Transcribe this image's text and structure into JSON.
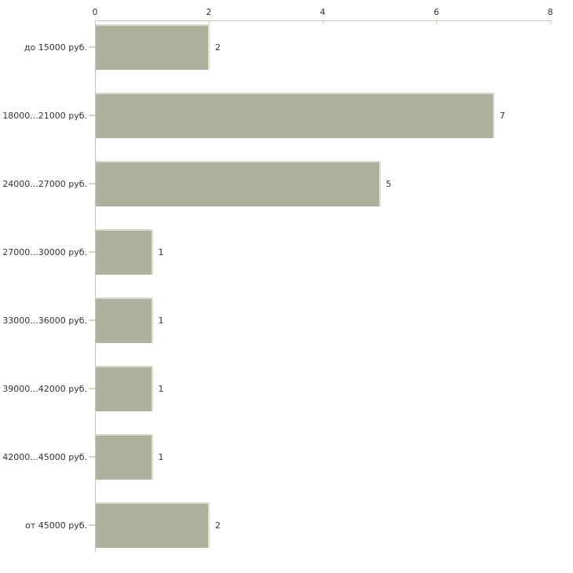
{
  "chart_data": {
    "type": "bar",
    "orientation": "horizontal",
    "title": "",
    "xlabel": "",
    "ylabel": "",
    "categories": [
      "до 15000 руб.",
      "18000...21000 руб.",
      "24000...27000 руб.",
      "27000...30000 руб.",
      "33000...36000 руб.",
      "39000...42000 руб.",
      "42000...45000 руб.",
      "от 45000 руб."
    ],
    "values": [
      2,
      7,
      5,
      1,
      1,
      1,
      1,
      2
    ],
    "x_ticks": [
      0,
      2,
      4,
      6,
      8
    ],
    "xlim": [
      0,
      8
    ],
    "axis_position": "top",
    "grid": false,
    "legend": "none",
    "bar_labels_shown": true
  },
  "colors": {
    "background": "#ffffff",
    "bar_fill": "#acb29b",
    "bar_highlight_top": "#d5d9c9",
    "bar_highlight_right": "#dde0d3",
    "axis_line": "#c6c6c6",
    "x_tick_mark": "#cccc99",
    "y_tick_mark": "#d4d7c0",
    "text": "#333333"
  }
}
